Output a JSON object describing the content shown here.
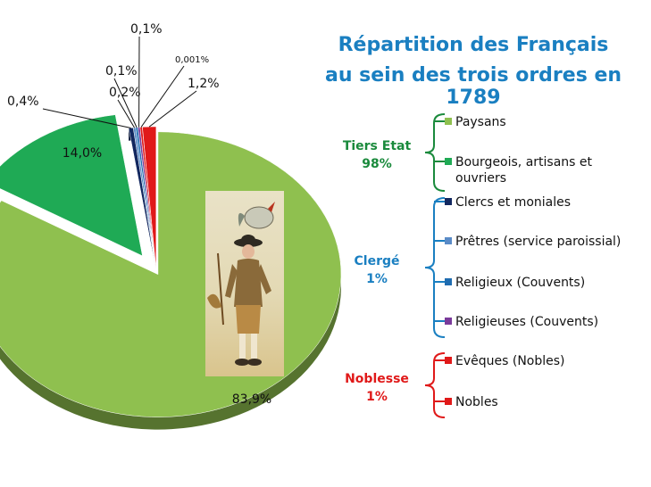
{
  "title": {
    "line1": "Répartition des Français",
    "line2": "au sein des trois ordres en 1789"
  },
  "orders": [
    {
      "name": "Tiers Etat",
      "percent": "98%",
      "color": "#1a8a3c"
    },
    {
      "name": "Clergé",
      "percent": "1%",
      "color": "#1a7fc1"
    },
    {
      "name": "Noblesse",
      "percent": "1%",
      "color": "#e01919"
    }
  ],
  "chart_data": {
    "type": "pie",
    "title": "Répartition des Français au sein des trois ordres en 1789",
    "slices": [
      {
        "name": "Paysans",
        "value": 83.9,
        "label": "83,9%",
        "color": "#8fc04f",
        "order": "Tiers Etat"
      },
      {
        "name": "Bourgeois, artisans et ouvriers",
        "value": 14.0,
        "label": "14,0%",
        "color": "#1faa55",
        "order": "Tiers Etat"
      },
      {
        "name": "Clercs et moniales",
        "value": 0.4,
        "label": "0,4%",
        "color": "#12275f",
        "order": "Clergé"
      },
      {
        "name": "Prêtres (service paroissial)",
        "value": 0.2,
        "label": "0,2%",
        "color": "#5a8bc7",
        "order": "Clergé"
      },
      {
        "name": "Religieux (Couvents)",
        "value": 0.1,
        "label": "0,1%",
        "color": "#1f6cb0",
        "order": "Clergé"
      },
      {
        "name": "Religieuses (Couvents)",
        "value": 0.1,
        "label": "0,1%",
        "color": "#7a3a9a",
        "order": "Clergé"
      },
      {
        "name": "Evêques (Nobles)",
        "value": 0.001,
        "label": "0,001%",
        "color": "#e01919",
        "order": "Noblesse"
      },
      {
        "name": "Nobles",
        "value": 1.2,
        "label": "1,2%",
        "color": "#e01919",
        "order": "Noblesse"
      }
    ]
  }
}
